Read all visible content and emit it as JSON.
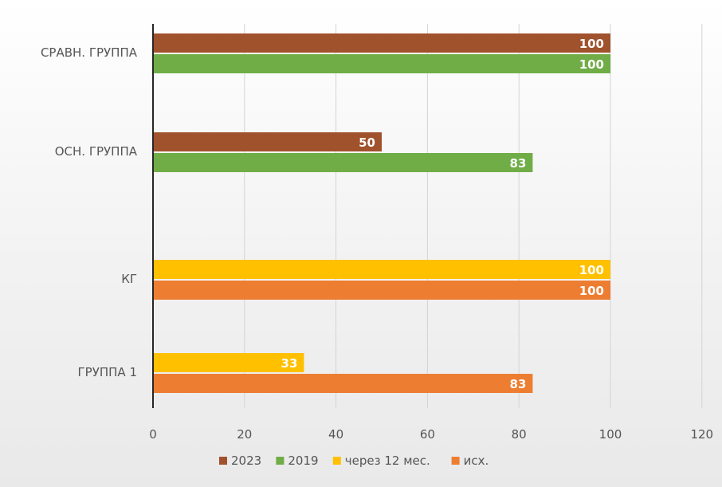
{
  "chart_data": {
    "type": "bar",
    "orientation": "horizontal",
    "title": "",
    "xlabel": "",
    "ylabel": "",
    "xlim": [
      0,
      120
    ],
    "x_ticks": [
      "0",
      "20",
      "40",
      "60",
      "80",
      "100",
      "120"
    ],
    "grid": "vertical",
    "legend_position": "bottom",
    "categories": [
      {
        "label": "ГРУППА 1",
        "bars": [
          {
            "series": "через 12 мес.",
            "value": 33,
            "label": "33"
          },
          {
            "series": "исх.",
            "value": 83,
            "label": "83"
          }
        ]
      },
      {
        "label": "КГ",
        "bars": [
          {
            "series": "через 12 мес.",
            "value": 100,
            "label": "100"
          },
          {
            "series": "исх.",
            "value": 100,
            "label": "100"
          }
        ]
      },
      {
        "label": "ОСН. ГРУППА",
        "bars": [
          {
            "series": "2023",
            "value": 50,
            "label": "50"
          },
          {
            "series": "2019",
            "value": 83,
            "label": "83"
          }
        ]
      },
      {
        "label": "СРАВН. ГРУППА",
        "bars": [
          {
            "series": "2023",
            "value": 100,
            "label": "100"
          },
          {
            "series": "2019",
            "value": 100,
            "label": "100"
          }
        ]
      }
    ],
    "series": [
      {
        "name": "2023",
        "color": "#a0522d"
      },
      {
        "name": "2019",
        "color": "#70ad47"
      },
      {
        "name": "через 12 мес.",
        "color": "#ffc000"
      },
      {
        "name": "исх.",
        "color": "#ed7d31"
      }
    ]
  }
}
